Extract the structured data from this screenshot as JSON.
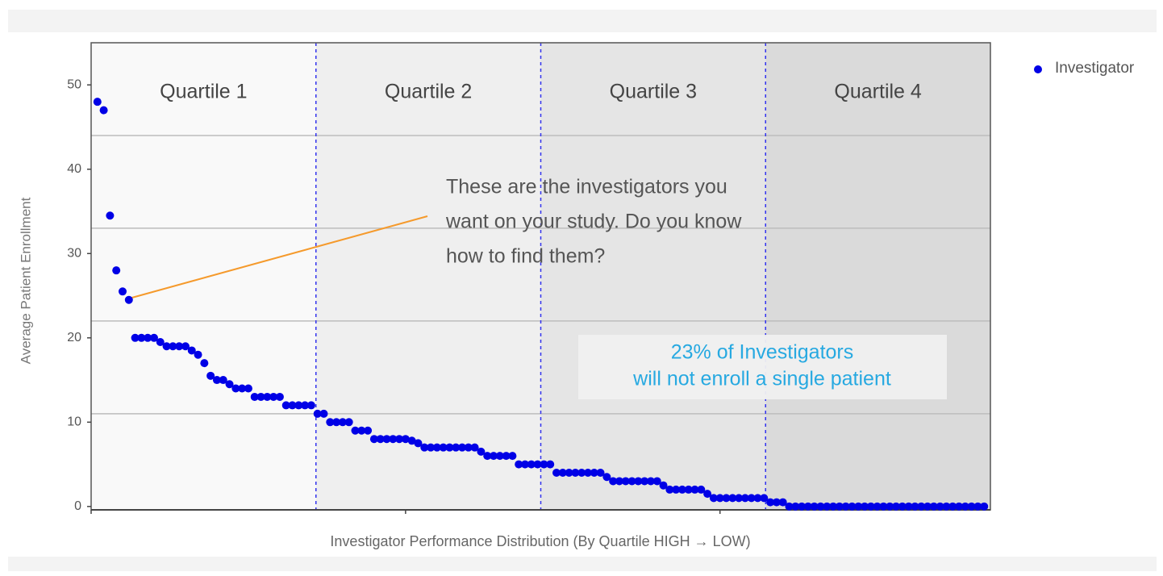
{
  "chart_data": {
    "type": "scatter",
    "x_label": "Investigator Performance Distribution (By Quartile HIGH → LOW)",
    "y_label": "Average Patient Enrollment",
    "series": [
      {
        "name": "Investigator",
        "color": "#0000e6",
        "x": [
          1,
          2,
          3,
          4,
          5,
          6,
          7,
          8,
          9,
          10,
          11,
          12,
          13,
          14,
          15,
          16,
          17,
          18,
          19,
          20,
          21,
          22,
          23,
          24,
          25,
          26,
          27,
          28,
          29,
          30,
          31,
          32,
          33,
          34,
          35,
          36,
          37,
          38,
          39,
          40,
          41,
          42,
          43,
          44,
          45,
          46,
          47,
          48,
          49,
          50,
          51,
          52,
          53,
          54,
          55,
          56,
          57,
          58,
          59,
          60,
          61,
          62,
          63,
          64,
          65,
          66,
          67,
          68,
          69,
          70,
          71,
          72,
          73,
          74,
          75,
          76,
          77,
          78,
          79,
          80,
          81,
          82,
          83,
          84,
          85,
          86,
          87,
          88,
          89,
          90,
          91,
          92,
          93,
          94,
          95,
          96,
          97,
          98,
          99,
          100,
          101,
          102,
          103,
          104,
          105,
          106,
          107,
          108,
          109,
          110,
          111,
          112,
          113,
          114,
          115,
          116,
          117,
          118,
          119,
          120,
          121,
          122,
          123,
          124,
          125,
          126,
          127,
          128,
          129,
          130,
          131,
          132,
          133,
          134,
          135,
          136,
          137,
          138,
          139,
          140,
          141,
          142
        ],
        "values": [
          48,
          47,
          34.5,
          28,
          25.5,
          24.5,
          20,
          20,
          20,
          20,
          19.5,
          19,
          19,
          19,
          19,
          18.5,
          18,
          17,
          15.5,
          15,
          15,
          14.5,
          14,
          14,
          14,
          13,
          13,
          13,
          13,
          13,
          12,
          12,
          12,
          12,
          12,
          11,
          11,
          10,
          10,
          10,
          10,
          9,
          9,
          9,
          8,
          8,
          8,
          8,
          8,
          8,
          7.8,
          7.5,
          7,
          7,
          7,
          7,
          7,
          7,
          7,
          7,
          7,
          6.5,
          6,
          6,
          6,
          6,
          6,
          5,
          5,
          5,
          5,
          5,
          5,
          4,
          4,
          4,
          4,
          4,
          4,
          4,
          4,
          3.5,
          3,
          3,
          3,
          3,
          3,
          3,
          3,
          3,
          2.5,
          2,
          2,
          2,
          2,
          2,
          2,
          1.5,
          1,
          1,
          1,
          1,
          1,
          1,
          1,
          1,
          1,
          0.5,
          0.5,
          0.5,
          0,
          0,
          0,
          0,
          0,
          0,
          0,
          0,
          0,
          0,
          0,
          0,
          0,
          0,
          0,
          0,
          0,
          0,
          0,
          0,
          0,
          0,
          0,
          0,
          0,
          0,
          0,
          0,
          0,
          0,
          0,
          0
        ]
      }
    ],
    "xlim": [
      0,
      143
    ],
    "xticks": [
      0,
      50,
      100
    ],
    "ylim": [
      -0.4,
      55
    ],
    "yticks": [
      0,
      10,
      20,
      30,
      40,
      50
    ],
    "grid_lines": [
      11,
      22,
      33,
      44
    ],
    "quartiles": [
      {
        "label": "Quartile 1",
        "from": 0,
        "to": 35.75,
        "color": "#f9f9f9"
      },
      {
        "label": "Quartile 2",
        "from": 35.75,
        "to": 71.5,
        "color": "#efefef"
      },
      {
        "label": "Quartile 3",
        "from": 71.5,
        "to": 107.25,
        "color": "#e5e5e5"
      },
      {
        "label": "Quartile 4",
        "from": 107.25,
        "to": 143,
        "color": "#dadada"
      }
    ],
    "annotation": [
      "These are the investigators you",
      "want on your study. Do you know",
      "how to find them?"
    ],
    "callout": [
      "23% of Investigators",
      "will not enroll a single patient"
    ],
    "legend": "top-right"
  }
}
